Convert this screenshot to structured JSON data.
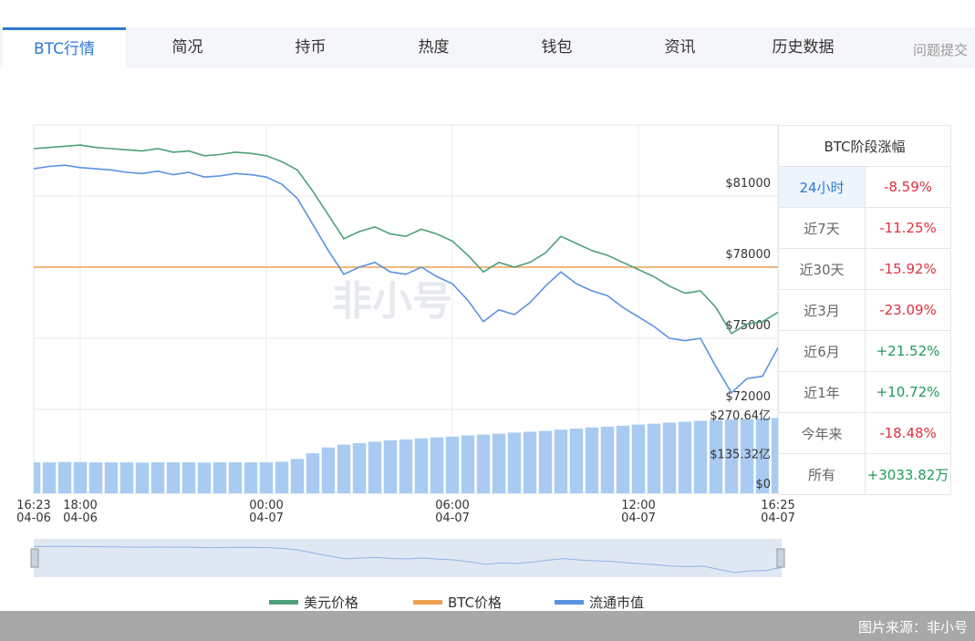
{
  "tabs": [
    "BTC行情",
    "简况",
    "持币",
    "热度",
    "钱包",
    "资讯",
    "历史数据"
  ],
  "feedback": "问题提交",
  "chart_data": {
    "type": "line",
    "categories": [
      "16:23\n04-06",
      null,
      null,
      "18:00\n04-06",
      null,
      null,
      null,
      null,
      null,
      null,
      null,
      null,
      null,
      null,
      null,
      "00:00\n04-07",
      null,
      null,
      null,
      null,
      null,
      null,
      null,
      null,
      null,
      null,
      null,
      "06:00\n04-07",
      null,
      null,
      null,
      null,
      null,
      null,
      null,
      null,
      null,
      null,
      null,
      "12:00\n04-07",
      null,
      null,
      null,
      null,
      null,
      null,
      null,
      null,
      "16:25\n04-07"
    ],
    "series": [
      {
        "name": "美元价格",
        "color": "#4e9f78",
        "values": [
          83000,
          83050,
          83100,
          83150,
          83050,
          83000,
          82950,
          82900,
          83000,
          82850,
          82900,
          82700,
          82750,
          82850,
          82800,
          82700,
          82450,
          82100,
          81200,
          80200,
          79200,
          79500,
          79700,
          79400,
          79300,
          79600,
          79400,
          79100,
          78500,
          77800,
          78200,
          78000,
          78200,
          78600,
          79300,
          79000,
          78700,
          78500,
          78200,
          77900,
          77600,
          77200,
          76900,
          77000,
          76300,
          75200,
          75600,
          75700,
          76100
        ]
      },
      {
        "name": "流通市值",
        "color": "#5b93e0",
        "values": [
          82150,
          82250,
          82300,
          82200,
          82150,
          82100,
          82000,
          81950,
          82050,
          81900,
          82000,
          81800,
          81850,
          81950,
          81900,
          81800,
          81500,
          80900,
          79800,
          78700,
          77700,
          78000,
          78200,
          77800,
          77700,
          78000,
          77600,
          77300,
          76600,
          75700,
          76200,
          76000,
          76500,
          77200,
          77800,
          77300,
          77000,
          76800,
          76300,
          75900,
          75500,
          75000,
          74900,
          75000,
          73800,
          72700,
          73300,
          73400,
          74600
        ]
      }
    ],
    "reference": {
      "name": "BTC价格",
      "color": "#f0a150",
      "value": 78000
    },
    "bars": {
      "color": "#a9cbf2",
      "axis": "y2",
      "values": [
        108,
        108,
        109,
        109,
        108,
        108,
        108,
        107,
        108,
        108,
        108,
        107,
        108,
        108,
        108,
        108,
        110,
        120,
        140,
        160,
        170,
        175,
        180,
        185,
        188,
        192,
        195,
        198,
        202,
        205,
        208,
        212,
        215,
        218,
        222,
        226,
        230,
        233,
        236,
        240,
        243,
        247,
        250,
        253,
        256,
        258,
        260,
        262,
        263
      ]
    },
    "ylim": [
      72000,
      84000
    ],
    "yticks": [
      {
        "value": 72000,
        "label": "$72000"
      },
      {
        "value": 75000,
        "label": "$75000"
      },
      {
        "value": 78000,
        "label": "$78000"
      },
      {
        "value": 81000,
        "label": "$81000"
      }
    ],
    "y2lim": [
      0,
      293
    ],
    "y2ticks": [
      {
        "value": 0,
        "label": "$0"
      },
      {
        "value": 135.32,
        "label": "$135.32亿"
      },
      {
        "value": 270.64,
        "label": "$270.64亿"
      }
    ],
    "grid": true,
    "watermark": "非小号"
  },
  "table": {
    "title": "BTC阶段涨幅",
    "rows": [
      [
        "24小时",
        "-8.59%"
      ],
      [
        "近7天",
        "-11.25%"
      ],
      [
        "近30天",
        "-15.92%"
      ],
      [
        "近3月",
        "-23.09%"
      ],
      [
        "近6月",
        "+21.52%"
      ],
      [
        "近1年",
        "+10.72%"
      ],
      [
        "今年来",
        "-18.48%"
      ],
      [
        "所有",
        "+3033.82万"
      ]
    ],
    "up_color": "#1e9a5a",
    "down_color": "#e0303e"
  },
  "footer": "图片来源：非小号"
}
